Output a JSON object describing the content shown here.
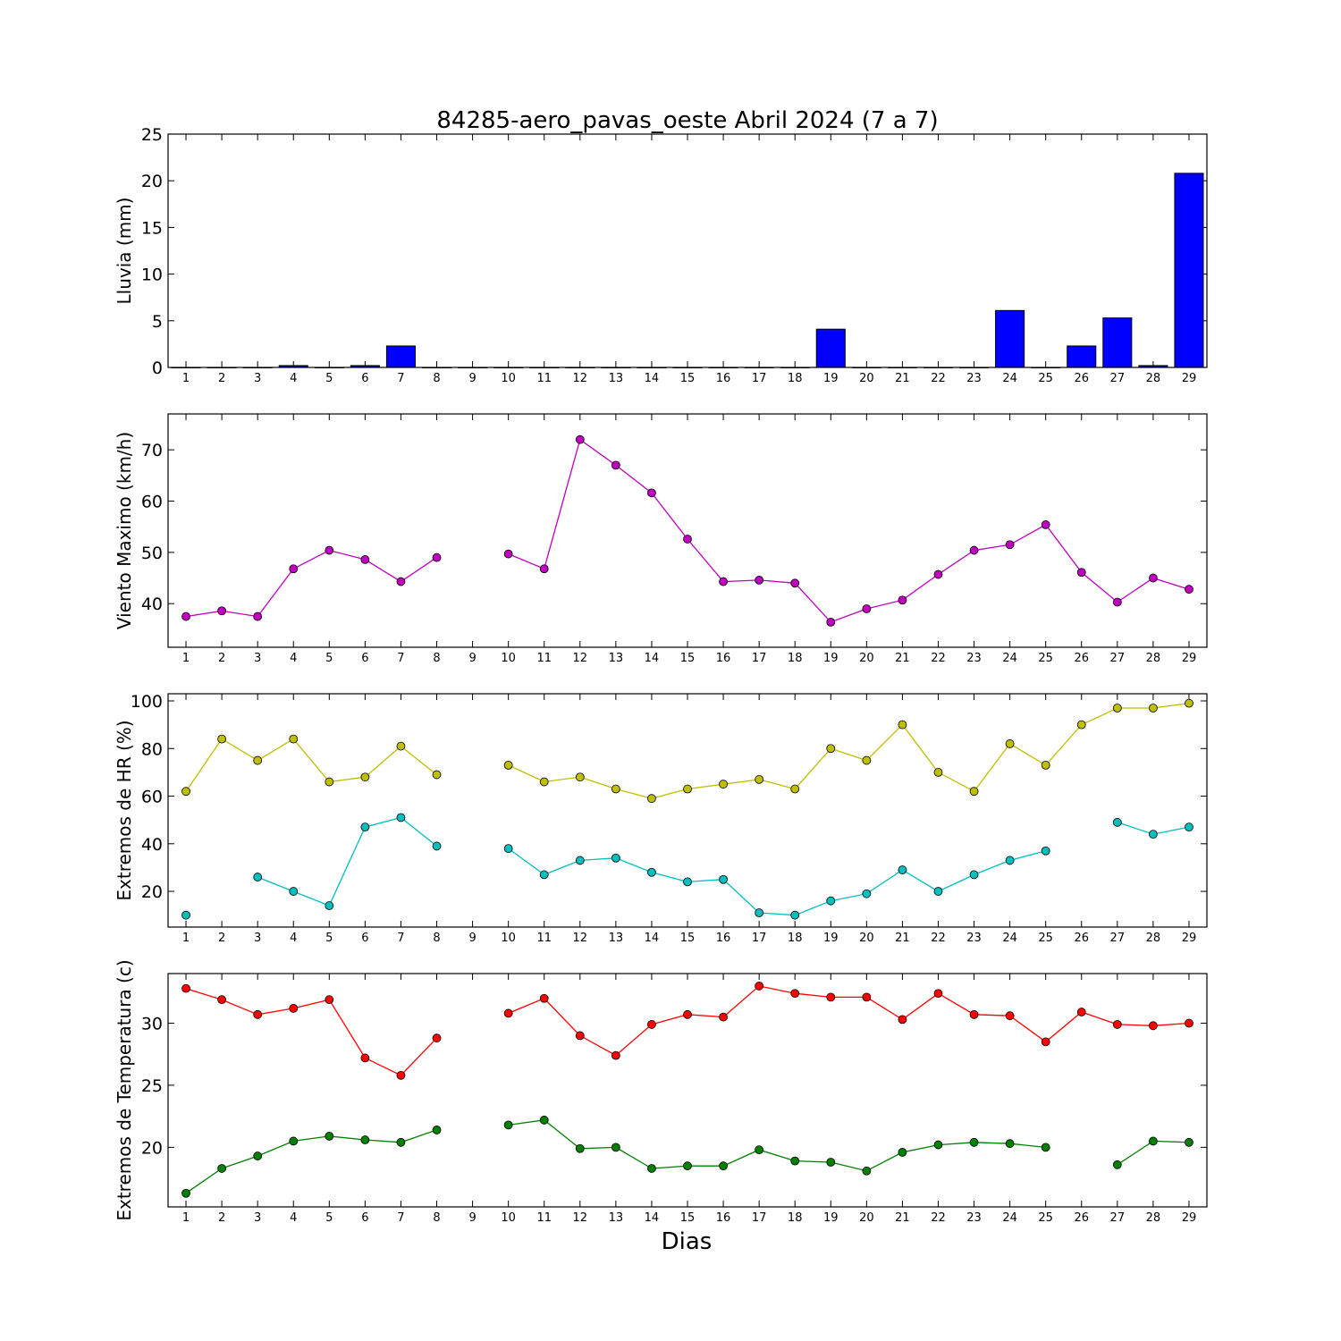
{
  "title": "84285-aero_pavas_oeste Abril 2024  (7 a 7)",
  "xlabel": "Dias",
  "colors": {
    "rain": "#0000ff",
    "wind": "#bf00bf",
    "hr_max": "#bfbf00",
    "hr_min": "#00bfbf",
    "temp_max": "#ff0000",
    "temp_min": "#008000"
  },
  "chart_data": [
    {
      "type": "bar",
      "id": "rain",
      "ylabel": "Lluvia (mm)",
      "xlim": [
        0.5,
        29.5
      ],
      "ylim": [
        0,
        25
      ],
      "yticks": [
        0,
        5,
        10,
        15,
        20,
        25
      ],
      "x": [
        1,
        2,
        3,
        4,
        5,
        6,
        7,
        8,
        9,
        10,
        11,
        12,
        13,
        14,
        15,
        16,
        17,
        18,
        19,
        20,
        21,
        22,
        23,
        24,
        25,
        26,
        27,
        28,
        29
      ],
      "xticks": [
        "1",
        "2",
        "3",
        "4",
        "5",
        "6",
        "7",
        "8",
        "9",
        "10",
        "11",
        "12",
        "13",
        "14",
        "15",
        "16",
        "17",
        "18",
        "19",
        "20",
        "21",
        "22",
        "23",
        "24",
        "25",
        "26",
        "27",
        "28",
        "29"
      ],
      "series": [
        {
          "color": "rain",
          "values": [
            0,
            0,
            0,
            0.2,
            0,
            0.2,
            2.3,
            0,
            0,
            0,
            0,
            0,
            0,
            0,
            0,
            0,
            0,
            0,
            4.1,
            0,
            0,
            0,
            0,
            6.1,
            0,
            2.3,
            5.3,
            0.2,
            20.8
          ]
        }
      ]
    },
    {
      "type": "line",
      "id": "wind",
      "ylabel": "Viento Maximo (km/h)",
      "xlim": [
        0.5,
        29.5
      ],
      "ylim": [
        31.5,
        77
      ],
      "yticks": [
        40,
        50,
        60,
        70
      ],
      "x": [
        1,
        2,
        3,
        4,
        5,
        6,
        7,
        8,
        9,
        10,
        11,
        12,
        13,
        14,
        15,
        16,
        17,
        18,
        19,
        20,
        21,
        22,
        23,
        24,
        25,
        26,
        27,
        28,
        29
      ],
      "xticks": [
        "1",
        "2",
        "3",
        "4",
        "5",
        "6",
        "7",
        "8",
        "9",
        "10",
        "11",
        "12",
        "13",
        "14",
        "15",
        "16",
        "17",
        "18",
        "19",
        "20",
        "21",
        "22",
        "23",
        "24",
        "25",
        "26",
        "27",
        "28",
        "29"
      ],
      "series": [
        {
          "color": "wind",
          "values": [
            37.5,
            38.6,
            37.5,
            46.8,
            50.4,
            48.6,
            44.3,
            49.0,
            null,
            49.7,
            46.8,
            72.0,
            67.0,
            61.6,
            52.6,
            44.3,
            44.6,
            44.0,
            36.4,
            39.0,
            40.7,
            45.7,
            50.4,
            51.5,
            55.4,
            46.1,
            40.3,
            45.0,
            42.8
          ]
        }
      ]
    },
    {
      "type": "line",
      "id": "hr",
      "ylabel": "Extremos de HR (%)",
      "xlim": [
        0.5,
        29.5
      ],
      "ylim": [
        5,
        103
      ],
      "yticks": [
        20,
        40,
        60,
        80,
        100
      ],
      "x": [
        1,
        2,
        3,
        4,
        5,
        6,
        7,
        8,
        9,
        10,
        11,
        12,
        13,
        14,
        15,
        16,
        17,
        18,
        19,
        20,
        21,
        22,
        23,
        24,
        25,
        26,
        27,
        28,
        29
      ],
      "xticks": [
        "1",
        "2",
        "3",
        "4",
        "5",
        "6",
        "7",
        "8",
        "9",
        "10",
        "11",
        "12",
        "13",
        "14",
        "15",
        "16",
        "17",
        "18",
        "19",
        "20",
        "21",
        "22",
        "23",
        "24",
        "25",
        "26",
        "27",
        "28",
        "29"
      ],
      "series": [
        {
          "color": "hr_max",
          "values": [
            62,
            84,
            75,
            84,
            66,
            68,
            81,
            69,
            null,
            73,
            66,
            68,
            63,
            59,
            63,
            65,
            67,
            63,
            80,
            75,
            90,
            70,
            62,
            82,
            73,
            90,
            97,
            97,
            99
          ]
        },
        {
          "color": "hr_min",
          "values": [
            10,
            null,
            26,
            20,
            14,
            47,
            51,
            39,
            null,
            38,
            27,
            33,
            34,
            28,
            24,
            25,
            11,
            10,
            16,
            19,
            29,
            20,
            27,
            33,
            37,
            null,
            49,
            44,
            47
          ]
        }
      ]
    },
    {
      "type": "line",
      "id": "temp",
      "ylabel": "Extremos de Temperatura (c)",
      "xlim": [
        0.5,
        29.5
      ],
      "ylim": [
        15.2,
        34
      ],
      "yticks": [
        20,
        25,
        30
      ],
      "x": [
        1,
        2,
        3,
        4,
        5,
        6,
        7,
        8,
        9,
        10,
        11,
        12,
        13,
        14,
        15,
        16,
        17,
        18,
        19,
        20,
        21,
        22,
        23,
        24,
        25,
        26,
        27,
        28,
        29
      ],
      "xticks": [
        "1",
        "2",
        "3",
        "4",
        "5",
        "6",
        "7",
        "8",
        "9",
        "10",
        "11",
        "12",
        "13",
        "14",
        "15",
        "16",
        "17",
        "18",
        "19",
        "20",
        "21",
        "22",
        "23",
        "24",
        "25",
        "26",
        "27",
        "28",
        "29"
      ],
      "series": [
        {
          "color": "temp_max",
          "values": [
            32.8,
            31.9,
            30.7,
            31.2,
            31.9,
            27.2,
            25.8,
            28.8,
            null,
            30.8,
            32.0,
            29.0,
            27.4,
            29.9,
            30.7,
            30.5,
            33.0,
            32.4,
            32.1,
            32.1,
            30.3,
            32.4,
            30.7,
            30.6,
            28.5,
            30.9,
            29.9,
            29.8,
            30.0
          ]
        },
        {
          "color": "temp_min",
          "values": [
            16.3,
            18.3,
            19.3,
            20.5,
            20.9,
            20.6,
            20.4,
            21.4,
            null,
            21.8,
            22.2,
            19.9,
            20.0,
            18.3,
            18.5,
            18.5,
            19.8,
            18.9,
            18.8,
            18.1,
            19.6,
            20.2,
            20.4,
            20.3,
            20.0,
            null,
            18.6,
            20.5,
            20.4
          ]
        }
      ]
    }
  ]
}
